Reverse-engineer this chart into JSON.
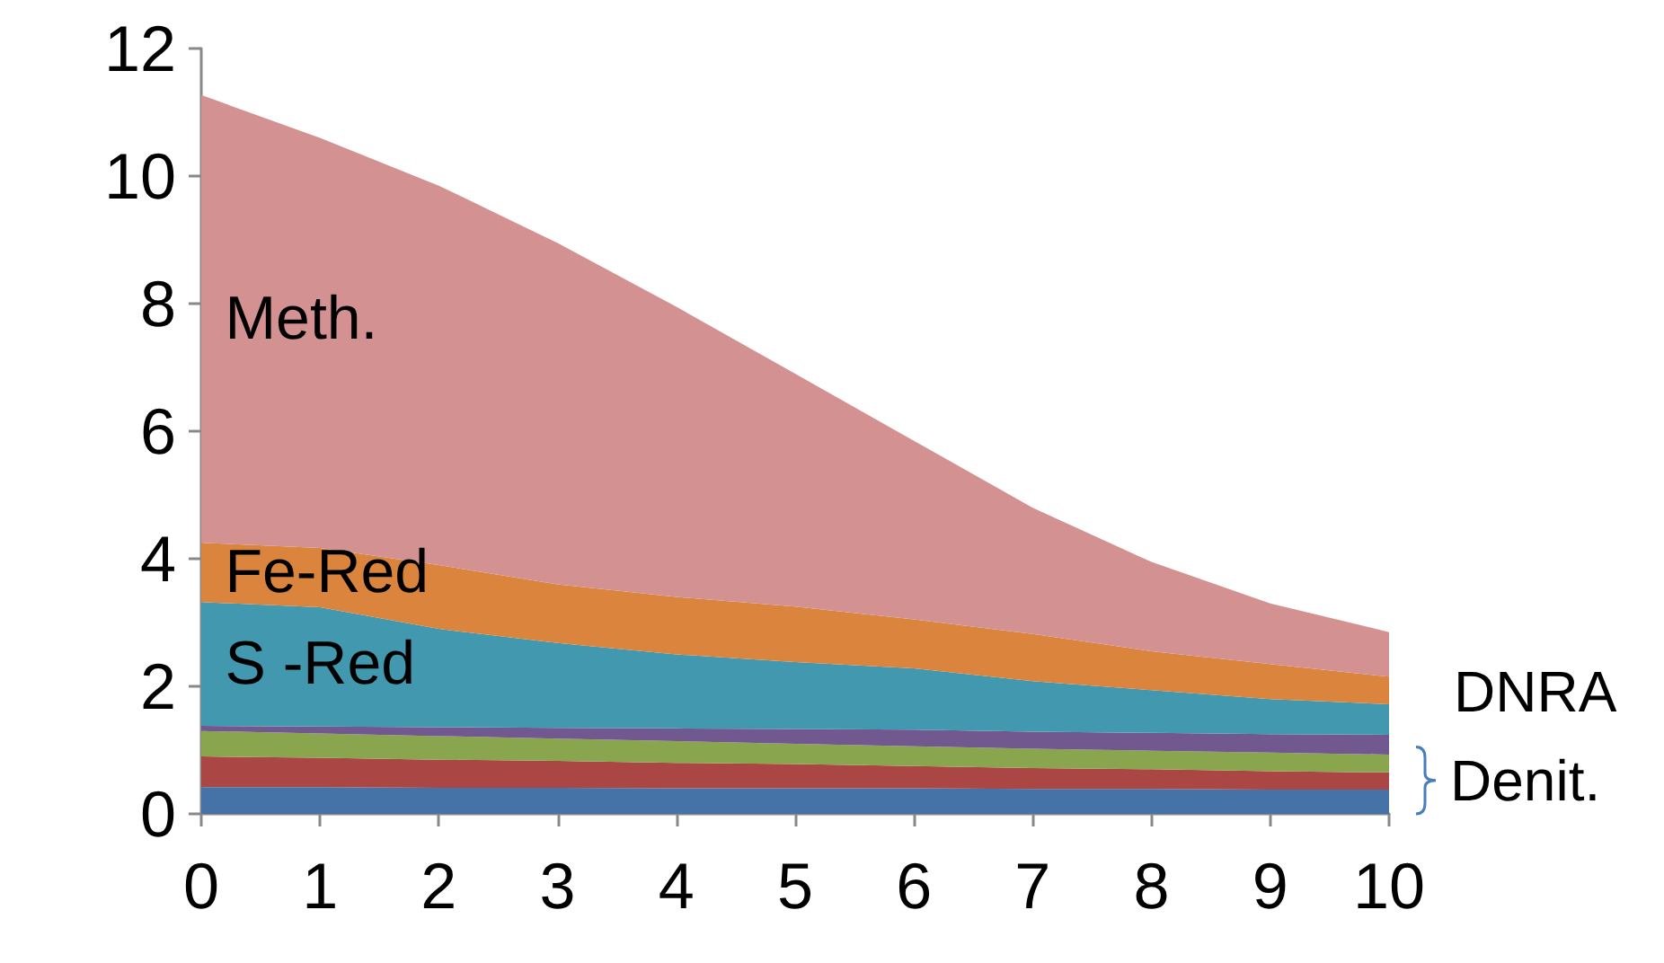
{
  "chart_data": {
    "type": "area",
    "stacked": true,
    "x": [
      0,
      1,
      2,
      3,
      4,
      5,
      6,
      7,
      8,
      9,
      10
    ],
    "xlim": [
      0,
      10
    ],
    "xticks": [
      0,
      1,
      2,
      3,
      4,
      5,
      6,
      7,
      8,
      9,
      10
    ],
    "ylim": [
      0,
      12
    ],
    "yticks": [
      0,
      2,
      4,
      6,
      8,
      10,
      12
    ],
    "grid": false,
    "legend": false,
    "series": [
      {
        "color": "#4572a7",
        "values": [
          0.42,
          0.42,
          0.41,
          0.41,
          0.4,
          0.4,
          0.4,
          0.39,
          0.39,
          0.38,
          0.38
        ]
      },
      {
        "color": "#aa4643",
        "values": [
          0.48,
          0.46,
          0.44,
          0.42,
          0.4,
          0.38,
          0.35,
          0.33,
          0.31,
          0.29,
          0.27
        ]
      },
      {
        "color": "#89a54e",
        "values": [
          0.4,
          0.38,
          0.37,
          0.35,
          0.34,
          0.32,
          0.31,
          0.3,
          0.29,
          0.29,
          0.28
        ]
      },
      {
        "name": "DNRA",
        "color": "#71588f",
        "values": [
          0.08,
          0.11,
          0.14,
          0.17,
          0.2,
          0.23,
          0.26,
          0.27,
          0.28,
          0.29,
          0.31
        ]
      },
      {
        "name": "S -Red",
        "color": "#4198af",
        "values": [
          1.94,
          1.87,
          1.54,
          1.33,
          1.16,
          1.05,
          0.96,
          0.79,
          0.67,
          0.55,
          0.48
        ]
      },
      {
        "name": "Fe-Red",
        "color": "#db843d",
        "values": [
          0.93,
          0.93,
          1.0,
          0.92,
          0.9,
          0.87,
          0.77,
          0.74,
          0.61,
          0.55,
          0.43
        ]
      },
      {
        "name": "Meth.",
        "color": "#d39291",
        "values": [
          7.02,
          6.43,
          5.95,
          5.35,
          4.55,
          3.65,
          2.8,
          1.98,
          1.4,
          0.95,
          0.7
        ]
      }
    ],
    "annotations": [
      "Denit."
    ]
  }
}
